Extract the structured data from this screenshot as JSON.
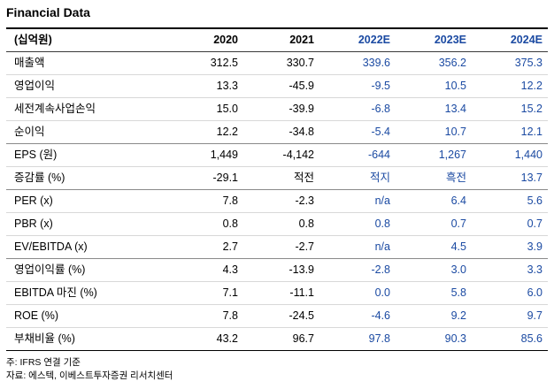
{
  "title": "Financial Data",
  "table": {
    "unit_label": "(십억원)",
    "columns": [
      "2020",
      "2021",
      "2022E",
      "2023E",
      "2024E"
    ],
    "estimate_columns": [
      2,
      3,
      4
    ],
    "groups": [
      {
        "rows": [
          {
            "label": "매출액",
            "values": [
              "312.5",
              "330.7",
              "339.6",
              "356.2",
              "375.3"
            ]
          },
          {
            "label": "영업이익",
            "values": [
              "13.3",
              "-45.9",
              "-9.5",
              "10.5",
              "12.2"
            ]
          },
          {
            "label": "세전계속사업손익",
            "values": [
              "15.0",
              "-39.9",
              "-6.8",
              "13.4",
              "15.2"
            ]
          },
          {
            "label": "순이익",
            "values": [
              "12.2",
              "-34.8",
              "-5.4",
              "10.7",
              "12.1"
            ]
          }
        ]
      },
      {
        "rows": [
          {
            "label": "EPS (원)",
            "values": [
              "1,449",
              "-4,142",
              "-644",
              "1,267",
              "1,440"
            ]
          },
          {
            "label": "증감률 (%)",
            "values": [
              "-29.1",
              "적전",
              "적지",
              "흑전",
              "13.7"
            ]
          }
        ]
      },
      {
        "rows": [
          {
            "label": "PER (x)",
            "values": [
              "7.8",
              "-2.3",
              "n/a",
              "6.4",
              "5.6"
            ]
          },
          {
            "label": "PBR (x)",
            "values": [
              "0.8",
              "0.8",
              "0.8",
              "0.7",
              "0.7"
            ]
          },
          {
            "label": "EV/EBITDA (x)",
            "values": [
              "2.7",
              "-2.7",
              "n/a",
              "4.5",
              "3.9"
            ]
          }
        ]
      },
      {
        "rows": [
          {
            "label": "영업이익률 (%)",
            "values": [
              "4.3",
              "-13.9",
              "-2.8",
              "3.0",
              "3.3"
            ]
          },
          {
            "label": "EBITDA 마진 (%)",
            "values": [
              "7.1",
              "-11.1",
              "0.0",
              "5.8",
              "6.0"
            ]
          },
          {
            "label": "ROE (%)",
            "values": [
              "7.8",
              "-24.5",
              "-4.6",
              "9.2",
              "9.7"
            ]
          },
          {
            "label": "부채비율 (%)",
            "values": [
              "43.2",
              "96.7",
              "97.8",
              "90.3",
              "85.6"
            ]
          }
        ]
      }
    ]
  },
  "footnotes": [
    "주: IFRS 연결 기준",
    "자료: 에스텍, 이베스트투자증권 리서치센터"
  ],
  "colors": {
    "estimate_blue": "#1b4aa2",
    "row_line": "#d8d8d8",
    "group_line": "#8a8a8a",
    "text": "#000000"
  }
}
